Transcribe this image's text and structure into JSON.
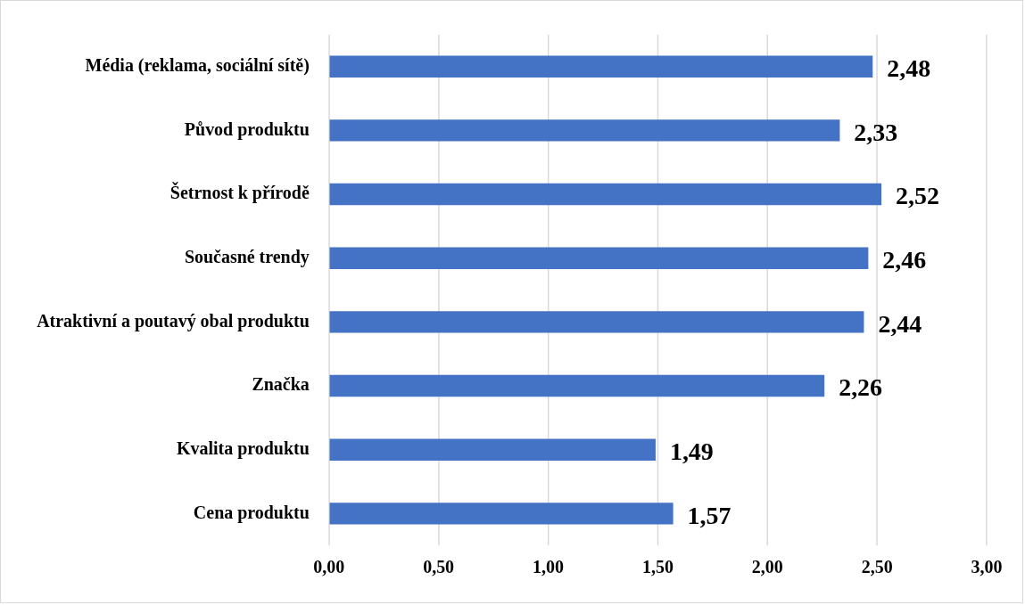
{
  "chart_data": {
    "type": "bar",
    "orientation": "horizontal",
    "categories": [
      "Média (reklama, sociální sítě)",
      "Původ produktu",
      "Šetrnost k přírodě",
      "Současné trendy",
      "Atraktivní a poutavý obal produktu",
      "Značka",
      "Kvalita produktu",
      "Cena produktu"
    ],
    "values": [
      2.48,
      2.33,
      2.52,
      2.46,
      2.44,
      2.26,
      1.49,
      1.57
    ],
    "value_labels": [
      "2,48",
      "2,33",
      "2,52",
      "2,46",
      "2,44",
      "2,26",
      "1,49",
      "1,57"
    ],
    "color": "#4472c4",
    "xlim": [
      0,
      3
    ],
    "xticks": [
      {
        "value": 0,
        "label": "0,00"
      },
      {
        "value": 0.5,
        "label": "0,50"
      },
      {
        "value": 1,
        "label": "1,00"
      },
      {
        "value": 1.5,
        "label": "1,50"
      },
      {
        "value": 2,
        "label": "2,00"
      },
      {
        "value": 2.5,
        "label": "2,50"
      },
      {
        "value": 3,
        "label": "3,00"
      }
    ],
    "grid": "x"
  }
}
